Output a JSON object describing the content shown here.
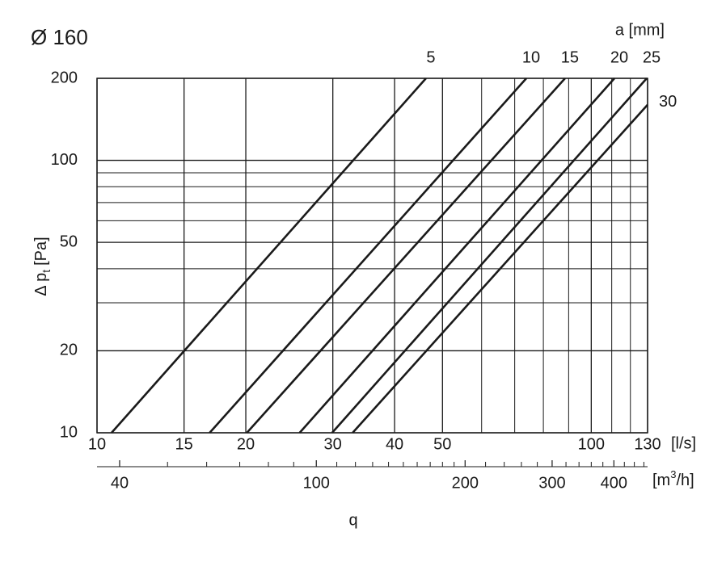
{
  "chart_data": {
    "type": "line",
    "title": "Ø 160",
    "legend_title": "a [mm]",
    "x_label": "q",
    "x_unit": "[l/s]",
    "x2_unit_parts": [
      "[m",
      "3",
      "/h]"
    ],
    "y_label_parts": [
      "Δ p",
      "t",
      "[Pa]"
    ],
    "xlog": true,
    "ylog": true,
    "grid": true,
    "xlim": [
      10,
      130
    ],
    "ylim": [
      10,
      200
    ],
    "xticks": [
      10,
      15,
      20,
      30,
      40,
      50,
      100,
      130
    ],
    "x_minor_ticks": [
      60,
      70,
      80,
      90,
      110,
      120
    ],
    "yticks": [
      10,
      20,
      50,
      100,
      200
    ],
    "y_minor_ticks": [
      30,
      40,
      60,
      70,
      80,
      90
    ],
    "x2lim": [
      36,
      468
    ],
    "x2ticks": [
      40,
      100,
      200,
      300,
      400
    ],
    "x2_minor_ticks": [
      50,
      60,
      70,
      80,
      90,
      110,
      120,
      130,
      140,
      150,
      160,
      170,
      180,
      190,
      220,
      240,
      260,
      280,
      320,
      340,
      360,
      380,
      420,
      440,
      460
    ],
    "color": "#1a1a1a",
    "series": [
      {
        "name": "5",
        "x": [
          10.7,
          46.3
        ],
        "y": [
          10,
          200
        ]
      },
      {
        "name": "10",
        "x": [
          16.9,
          73.9
        ],
        "y": [
          10,
          200
        ]
      },
      {
        "name": "15",
        "x": [
          20.1,
          88.5
        ],
        "y": [
          10,
          200
        ]
      },
      {
        "name": "20",
        "x": [
          25.7,
          111.4
        ],
        "y": [
          10,
          200
        ]
      },
      {
        "name": "25",
        "x": [
          29.9,
          129.5
        ],
        "y": [
          10,
          200
        ]
      },
      {
        "name": "30",
        "x": [
          32.9,
          130
        ],
        "y": [
          10,
          160
        ]
      }
    ]
  }
}
